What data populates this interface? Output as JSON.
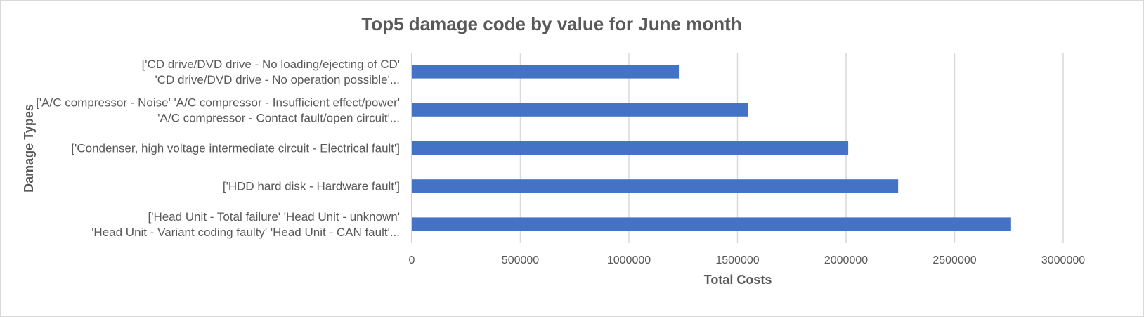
{
  "chart_data": {
    "type": "bar",
    "orientation": "horizontal",
    "title": "Top5 damage code by value for June month",
    "xlabel": "Total Costs",
    "ylabel": "Damage Types",
    "xlim": [
      0,
      3000000
    ],
    "xticks": [
      "0",
      "500000",
      "1000000",
      "1500000",
      "2000000",
      "2500000",
      "3000000"
    ],
    "grid": true,
    "legend": "none",
    "bar_color": "#4472C4",
    "categories": [
      {
        "lines": [
          "['CD drive/DVD drive - No loading/ejecting of CD'",
          "'CD drive/DVD drive - No operation possible'..."
        ]
      },
      {
        "lines": [
          "['A/C compressor - Noise' 'A/C compressor - Insufficient effect/power'",
          "'A/C compressor - Contact fault/open circuit'..."
        ]
      },
      {
        "lines": [
          "['Condenser, high voltage intermediate circuit - Electrical fault']"
        ]
      },
      {
        "lines": [
          "['HDD hard disk - Hardware fault']"
        ]
      },
      {
        "lines": [
          "['Head Unit - Total failure' 'Head Unit - unknown'",
          "'Head Unit - Variant coding faulty' 'Head Unit - CAN fault'..."
        ]
      }
    ],
    "values": [
      1230000,
      1550000,
      2010000,
      2240000,
      2760000
    ]
  }
}
